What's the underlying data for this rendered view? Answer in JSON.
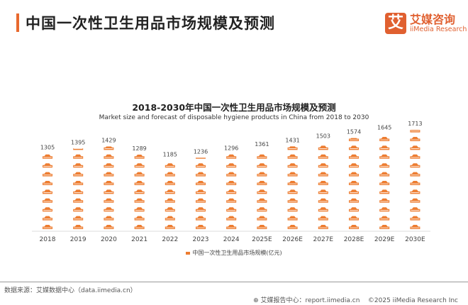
{
  "header": {
    "title": "中国一次性卫生用品市场规模及预测",
    "logo_mark": "艾",
    "logo_cn": "艾媒咨询",
    "logo_en": "iiMedia Research"
  },
  "chart_data": {
    "type": "bar",
    "style": "pictograph",
    "title": "2018-2030年中国一次性卫生用品市场规模及预测",
    "subtitle": "Market size and forecast of disposable hygiene products in China from 2018 to 2030",
    "categories": [
      "2018",
      "2019",
      "2020",
      "2021",
      "2022",
      "2023",
      "2024",
      "2025E",
      "2026E",
      "2027E",
      "2028E",
      "2029E",
      "2030E"
    ],
    "series": [
      {
        "name": "中国一次性卫生用品市场规模(亿元)",
        "values": [
          1305,
          1395,
          1429,
          1289,
          1185,
          1236,
          1296,
          1361,
          1431,
          1503,
          1574,
          1645,
          1713
        ],
        "color": "#ed7d31"
      }
    ],
    "ylim": [
      0,
      1800
    ],
    "grid": false,
    "legend": "bottom"
  },
  "footer": {
    "source": "数据来源：艾媒数据中心（data.iimedia.cn）",
    "report": "艾媒报告中心：report.iimedia.cn",
    "copyright": "©2025  iiMedia Research Inc"
  }
}
